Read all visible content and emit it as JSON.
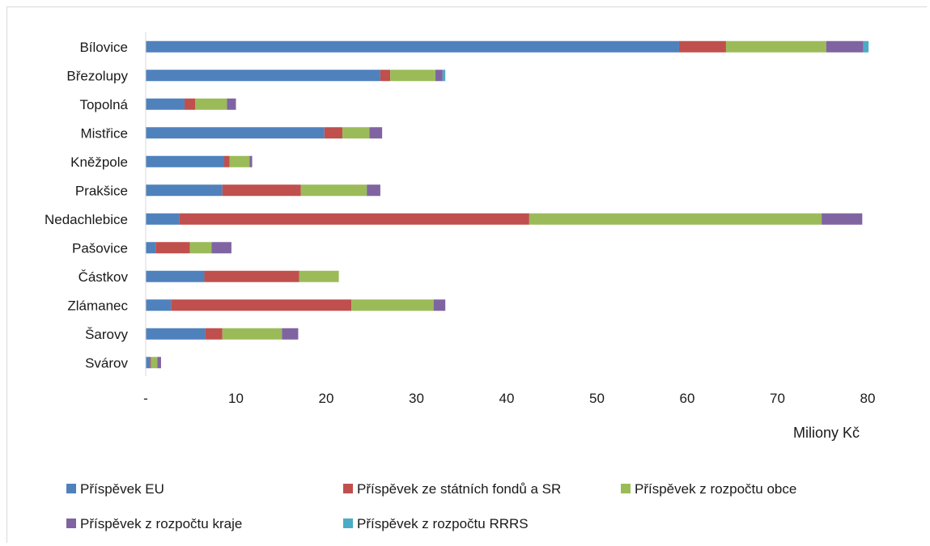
{
  "chart_data": {
    "type": "bar",
    "orientation": "horizontal",
    "stacked": true,
    "categories": [
      "Bílovice",
      "Březolupy",
      "Topolná",
      "Mistřice",
      "Kněžpole",
      "Prakšice",
      "Nedachlebice",
      "Pašovice",
      "Částkov",
      "Zlámanec",
      "Šarovy",
      "Svárov"
    ],
    "series": [
      {
        "name": "Příspěvek EU",
        "color": "#4f81bd",
        "values": [
          59.1,
          26.0,
          4.3,
          19.8,
          8.7,
          8.5,
          3.7,
          1.1,
          6.5,
          2.8,
          6.6,
          0.5
        ]
      },
      {
        "name": "Příspěvek ze státních fondů a SR",
        "color": "#c0504d",
        "values": [
          5.2,
          1.1,
          1.2,
          2.0,
          0.6,
          8.7,
          38.8,
          3.8,
          10.5,
          20.0,
          1.9,
          0.1
        ]
      },
      {
        "name": "Příspěvek z rozpočtu obce",
        "color": "#9bbb59",
        "values": [
          11.1,
          5.0,
          3.5,
          3.0,
          2.2,
          7.3,
          32.4,
          2.4,
          4.4,
          9.1,
          6.6,
          0.7
        ]
      },
      {
        "name": "Příspěvek z rozpočtu kraje",
        "color": "#8064a2",
        "values": [
          4.1,
          0.8,
          1.0,
          1.4,
          0.3,
          1.5,
          4.5,
          2.2,
          0.0,
          1.3,
          1.8,
          0.4
        ]
      },
      {
        "name": "Příspěvek z rozpočtu RRRS",
        "color": "#4bacc6",
        "values": [
          0.6,
          0.3,
          0.0,
          0.0,
          0.0,
          0.0,
          0.0,
          0.0,
          0.0,
          0.0,
          0.0,
          0.0
        ]
      }
    ],
    "x_ticks": [
      "-",
      "10",
      "20",
      "30",
      "40",
      "50",
      "60",
      "70",
      "80"
    ],
    "xlim": [
      0,
      80
    ],
    "xlabel": "Miliony Kč",
    "grid": false,
    "legend_position": "bottom"
  }
}
